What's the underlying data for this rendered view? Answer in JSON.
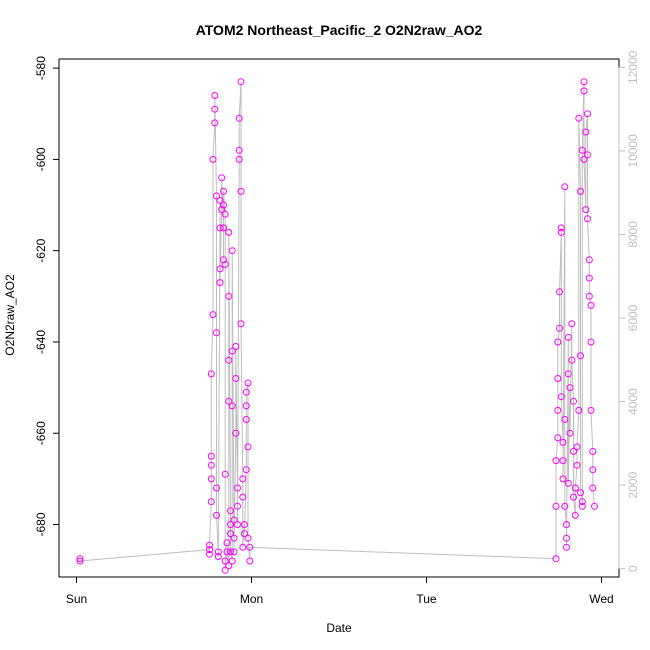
{
  "chart_data": {
    "type": "scatter",
    "title": "ATOM2 Northeast_Pacific_2 O2N2raw_AO2",
    "xlabel": "Date",
    "ylabel": "O2N2raw_AO2",
    "x_ticks": [
      "Sun",
      "Mon",
      "Tue",
      "Wed"
    ],
    "x_tick_values": [
      0,
      1,
      2,
      3
    ],
    "xlim": [
      -0.1,
      3.1
    ],
    "y_ticks": [
      -580,
      -600,
      -620,
      -640,
      -660,
      -680
    ],
    "ylim": [
      -691.5,
      -578
    ],
    "y2_ticks": [
      "0",
      "2000",
      "4000",
      "6000",
      "8000",
      "10000",
      "12000"
    ],
    "y2_tick_values": [
      0,
      2000,
      4000,
      6000,
      8000,
      10000,
      12000
    ],
    "y2lim": [
      -200,
      12200
    ],
    "grid": false,
    "colors": {
      "points": "#ff00ff",
      "line": "#bdbdbd",
      "axis": "#000000"
    },
    "series": [
      {
        "values": [
          [
            0.02,
            -687.5
          ],
          [
            0.02,
            -688
          ],
          [
            0.76,
            -685.5
          ],
          [
            0.76,
            -686.5
          ],
          [
            0.76,
            -684.5
          ],
          [
            0.77,
            -675
          ],
          [
            0.77,
            -670
          ],
          [
            0.77,
            -667
          ],
          [
            0.77,
            -665
          ],
          [
            0.77,
            -647
          ],
          [
            0.78,
            -634
          ],
          [
            0.78,
            -600
          ],
          [
            0.79,
            -592
          ],
          [
            0.79,
            -589
          ],
          [
            0.79,
            -586
          ],
          [
            0.8,
            -608
          ],
          [
            0.8,
            -638
          ],
          [
            0.8,
            -672
          ],
          [
            0.8,
            -678
          ],
          [
            0.81,
            -686
          ],
          [
            0.81,
            -687
          ],
          [
            0.82,
            -615
          ],
          [
            0.82,
            -609
          ],
          [
            0.82,
            -624
          ],
          [
            0.82,
            -627
          ],
          [
            0.83,
            -611
          ],
          [
            0.83,
            -604
          ],
          [
            0.84,
            -615
          ],
          [
            0.84,
            -622
          ],
          [
            0.84,
            -610
          ],
          [
            0.84,
            -607
          ],
          [
            0.85,
            -612
          ],
          [
            0.85,
            -623
          ],
          [
            0.85,
            -669
          ],
          [
            0.85,
            -688
          ],
          [
            0.85,
            -690
          ],
          [
            0.86,
            -686
          ],
          [
            0.86,
            -684
          ],
          [
            0.87,
            -689
          ],
          [
            0.87,
            -653
          ],
          [
            0.87,
            -644
          ],
          [
            0.87,
            -630
          ],
          [
            0.87,
            -616
          ],
          [
            0.88,
            -677
          ],
          [
            0.88,
            -680
          ],
          [
            0.88,
            -682
          ],
          [
            0.88,
            -686
          ],
          [
            0.89,
            -688
          ],
          [
            0.89,
            -654
          ],
          [
            0.89,
            -642
          ],
          [
            0.89,
            -620
          ],
          [
            0.9,
            -683
          ],
          [
            0.9,
            -679
          ],
          [
            0.9,
            -686
          ],
          [
            0.91,
            -660
          ],
          [
            0.91,
            -648
          ],
          [
            0.91,
            -641
          ],
          [
            0.92,
            -672
          ],
          [
            0.92,
            -676
          ],
          [
            0.92,
            -680
          ],
          [
            0.93,
            -600
          ],
          [
            0.93,
            -598
          ],
          [
            0.93,
            -591
          ],
          [
            0.94,
            -583
          ],
          [
            0.94,
            -607
          ],
          [
            0.94,
            -636
          ],
          [
            0.95,
            -670
          ],
          [
            0.95,
            -674
          ],
          [
            0.95,
            -685
          ],
          [
            0.96,
            -680
          ],
          [
            0.96,
            -682
          ],
          [
            0.97,
            -668
          ],
          [
            0.97,
            -657
          ],
          [
            0.97,
            -654
          ],
          [
            0.97,
            -651
          ],
          [
            0.98,
            -649
          ],
          [
            0.98,
            -663
          ],
          [
            0.98,
            -683
          ],
          [
            0.99,
            -688
          ],
          [
            0.99,
            -685
          ],
          [
            2.74,
            -687.5
          ],
          [
            2.74,
            -676
          ],
          [
            2.74,
            -666
          ],
          [
            2.75,
            -661
          ],
          [
            2.75,
            -655
          ],
          [
            2.75,
            -648
          ],
          [
            2.75,
            -640
          ],
          [
            2.76,
            -637
          ],
          [
            2.76,
            -629
          ],
          [
            2.77,
            -616
          ],
          [
            2.77,
            -615
          ],
          [
            2.77,
            -652
          ],
          [
            2.78,
            -662
          ],
          [
            2.78,
            -666
          ],
          [
            2.78,
            -670
          ],
          [
            2.79,
            -606
          ],
          [
            2.79,
            -657
          ],
          [
            2.79,
            -676
          ],
          [
            2.8,
            -680
          ],
          [
            2.8,
            -685
          ],
          [
            2.8,
            -683
          ],
          [
            2.81,
            -639
          ],
          [
            2.81,
            -647
          ],
          [
            2.81,
            -671
          ],
          [
            2.82,
            -650
          ],
          [
            2.82,
            -660
          ],
          [
            2.83,
            -636
          ],
          [
            2.83,
            -644
          ],
          [
            2.84,
            -653
          ],
          [
            2.84,
            -664
          ],
          [
            2.84,
            -674
          ],
          [
            2.85,
            -678
          ],
          [
            2.85,
            -672
          ],
          [
            2.86,
            -667
          ],
          [
            2.86,
            -663
          ],
          [
            2.87,
            -655
          ],
          [
            2.87,
            -591
          ],
          [
            2.88,
            -607
          ],
          [
            2.88,
            -643
          ],
          [
            2.88,
            -673
          ],
          [
            2.89,
            -675
          ],
          [
            2.89,
            -676
          ],
          [
            2.89,
            -598
          ],
          [
            2.9,
            -583
          ],
          [
            2.9,
            -585
          ],
          [
            2.9,
            -600
          ],
          [
            2.91,
            -611
          ],
          [
            2.91,
            -594
          ],
          [
            2.92,
            -590
          ],
          [
            2.92,
            -599
          ],
          [
            2.92,
            -613
          ],
          [
            2.93,
            -622
          ],
          [
            2.93,
            -626
          ],
          [
            2.93,
            -630
          ],
          [
            2.94,
            -632
          ],
          [
            2.94,
            -640
          ],
          [
            2.94,
            -655
          ],
          [
            2.95,
            -664
          ],
          [
            2.95,
            -668
          ],
          [
            2.95,
            -672
          ],
          [
            2.96,
            -676
          ]
        ]
      }
    ]
  }
}
